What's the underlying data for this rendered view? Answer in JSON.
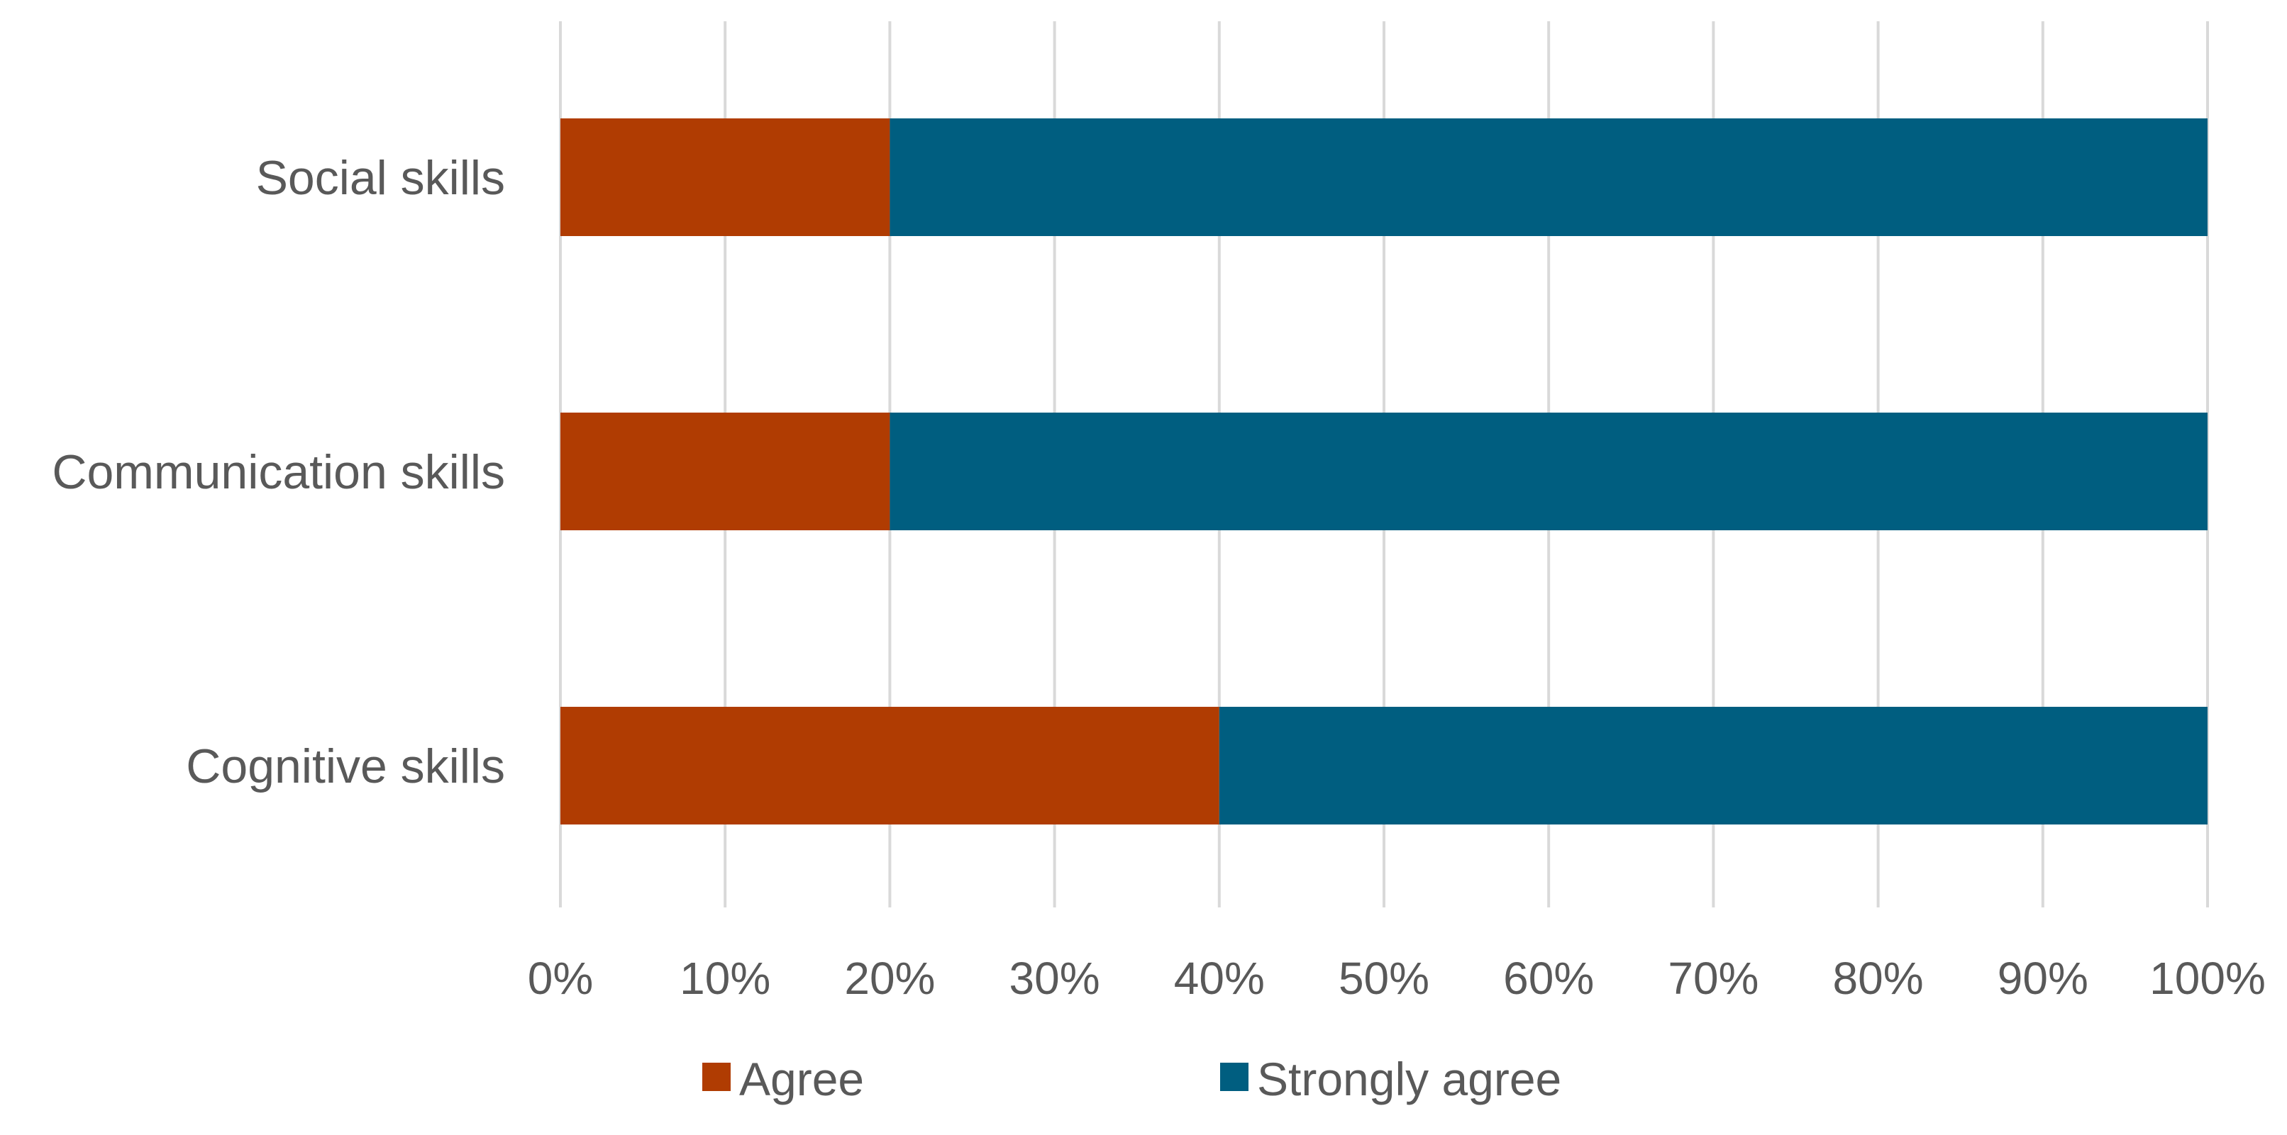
{
  "chart_data": {
    "type": "bar",
    "orientation": "horizontal",
    "stacked": "percent",
    "title": "",
    "xlabel": "",
    "ylabel": "",
    "categories": [
      "Social skills",
      "Communication skills",
      "Cognitive skills"
    ],
    "series": [
      {
        "name": "Agree",
        "color": "#b03c02",
        "values": [
          20,
          20,
          40
        ]
      },
      {
        "name": "Strongly agree",
        "color": "#005e80",
        "values": [
          80,
          80,
          60
        ]
      }
    ],
    "xlim": [
      0,
      100
    ],
    "x_ticks": [
      "0%",
      "10%",
      "20%",
      "30%",
      "40%",
      "50%",
      "60%",
      "70%",
      "80%",
      "90%",
      "100%"
    ],
    "grid": "vertical",
    "legend_position": "bottom"
  }
}
